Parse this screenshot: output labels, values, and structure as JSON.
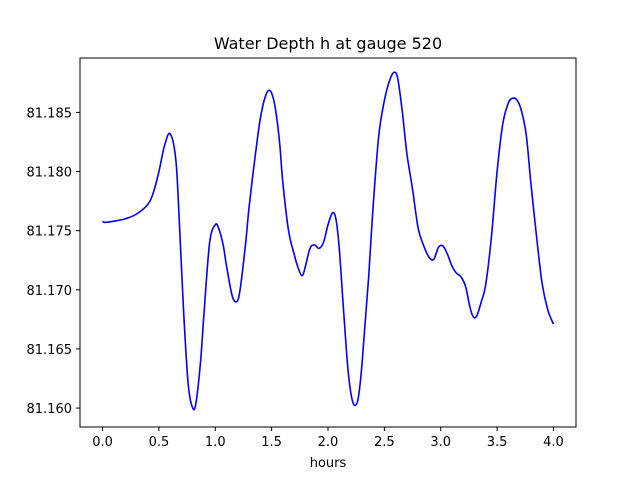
{
  "chart_data": {
    "type": "line",
    "title": "Water Depth h at gauge 520",
    "xlabel": "hours",
    "ylabel": "",
    "xlim": [
      -0.2,
      4.2
    ],
    "ylim": [
      81.1584,
      81.1896
    ],
    "xticks": [
      0.0,
      0.5,
      1.0,
      1.5,
      2.0,
      2.5,
      3.0,
      3.5,
      4.0
    ],
    "xtick_labels": [
      "0.0",
      "0.5",
      "1.0",
      "1.5",
      "2.0",
      "2.5",
      "3.0",
      "3.5",
      "4.0"
    ],
    "yticks": [
      81.16,
      81.165,
      81.17,
      81.175,
      81.18,
      81.185
    ],
    "ytick_labels": [
      "81.160",
      "81.165",
      "81.170",
      "81.175",
      "81.180",
      "81.185"
    ],
    "grid": false,
    "series": [
      {
        "color": "#0000ff",
        "x": [
          0.0,
          0.02,
          0.1,
          0.2,
          0.3,
          0.4,
          0.45,
          0.5,
          0.55,
          0.6,
          0.65,
          0.68,
          0.72,
          0.76,
          0.8,
          0.83,
          0.87,
          0.9,
          0.95,
          1.0,
          1.03,
          1.07,
          1.1,
          1.15,
          1.19,
          1.22,
          1.27,
          1.3,
          1.35,
          1.4,
          1.45,
          1.49,
          1.53,
          1.57,
          1.6,
          1.65,
          1.7,
          1.73,
          1.77,
          1.8,
          1.84,
          1.88,
          1.92,
          1.96,
          2.0,
          2.04,
          2.07,
          2.1,
          2.14,
          2.18,
          2.22,
          2.26,
          2.29,
          2.32,
          2.36,
          2.4,
          2.45,
          2.5,
          2.55,
          2.59,
          2.62,
          2.66,
          2.7,
          2.75,
          2.8,
          2.85,
          2.9,
          2.94,
          2.98,
          3.02,
          3.06,
          3.1,
          3.14,
          3.18,
          3.22,
          3.26,
          3.29,
          3.32,
          3.36,
          3.4,
          3.45,
          3.5,
          3.55,
          3.6,
          3.64,
          3.68,
          3.72,
          3.76,
          3.8,
          3.85,
          3.9,
          3.95,
          4.0
        ],
        "y": [
          81.1758,
          81.1757,
          81.1758,
          81.176,
          81.1764,
          81.1772,
          81.1782,
          81.18,
          81.1822,
          81.1832,
          81.181,
          81.176,
          81.168,
          81.162,
          81.16,
          81.1605,
          81.164,
          81.168,
          81.174,
          81.1755,
          81.1752,
          81.1738,
          81.172,
          81.1695,
          81.169,
          81.17,
          81.174,
          81.177,
          81.181,
          81.1845,
          81.1865,
          81.1868,
          81.1855,
          81.1825,
          81.179,
          81.175,
          81.173,
          81.172,
          81.1712,
          81.172,
          81.1735,
          81.1738,
          81.1735,
          81.174,
          81.1755,
          81.1765,
          81.176,
          81.1735,
          81.168,
          81.163,
          81.1605,
          81.1605,
          81.1625,
          81.166,
          81.171,
          81.177,
          81.183,
          81.186,
          81.1878,
          81.1884,
          81.1878,
          81.185,
          81.1815,
          81.1785,
          81.1752,
          81.1737,
          81.1727,
          81.1726,
          81.1736,
          81.1737,
          81.173,
          81.172,
          81.1714,
          81.1711,
          81.1703,
          81.1685,
          81.1677,
          81.1678,
          81.169,
          81.1705,
          81.1745,
          81.18,
          81.184,
          81.1858,
          81.1862,
          81.186,
          81.185,
          81.183,
          81.179,
          81.1745,
          81.1705,
          81.1683,
          81.1671
        ]
      }
    ]
  }
}
